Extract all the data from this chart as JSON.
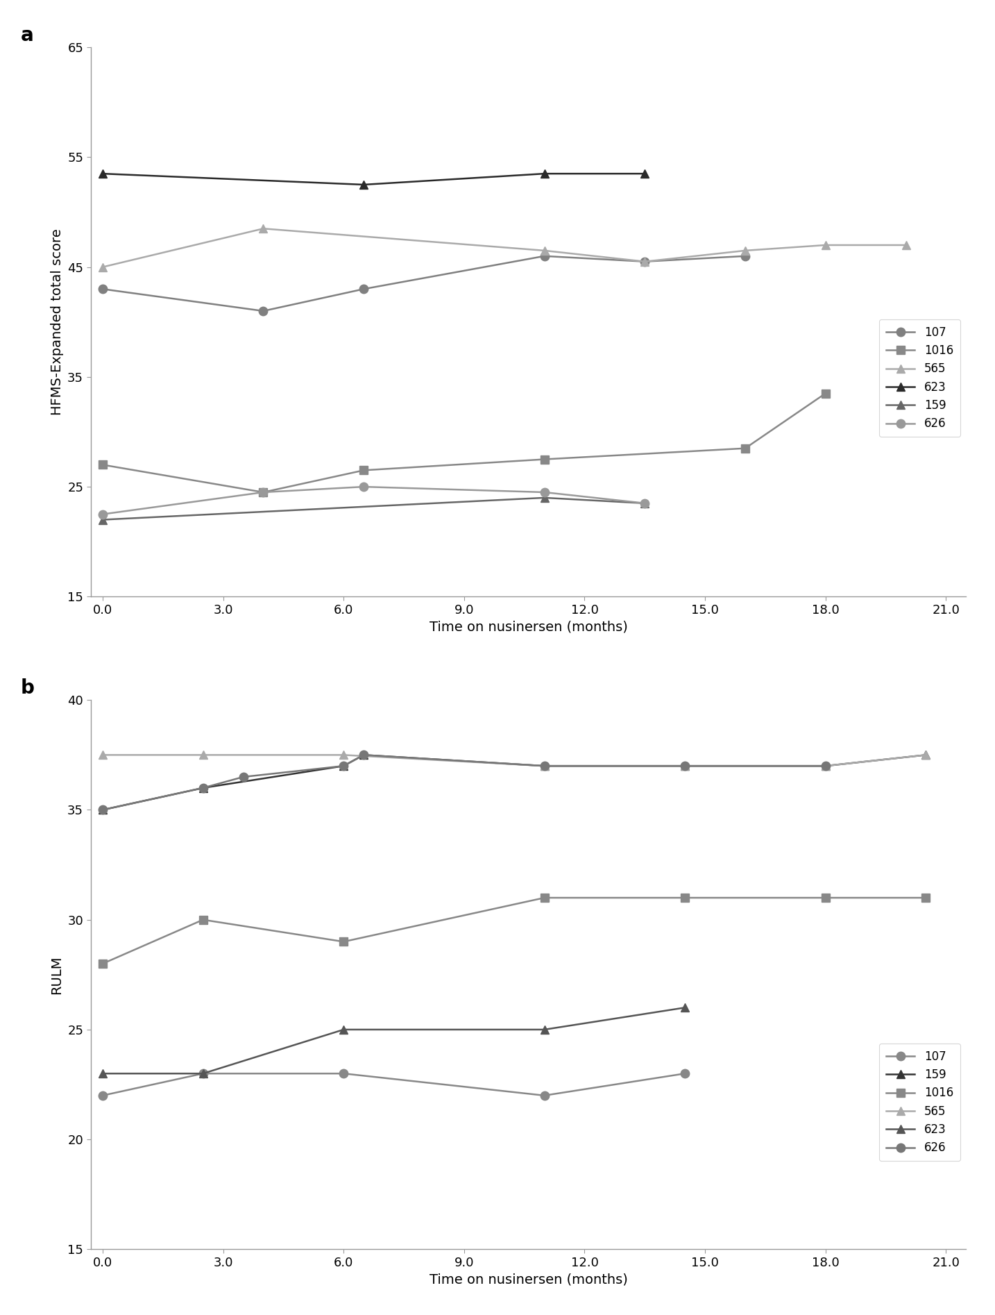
{
  "panel_a": {
    "title": "a",
    "ylabel": "HFMS-Expanded total score",
    "xlabel": "Time on nusinersen (months)",
    "ylim": [
      15,
      65
    ],
    "yticks": [
      15,
      25,
      35,
      45,
      55,
      65
    ],
    "xlim": [
      -0.3,
      21.5
    ],
    "xticks": [
      0.0,
      3.0,
      6.0,
      9.0,
      12.0,
      15.0,
      18.0,
      21.0
    ],
    "xtick_labels": [
      "0.0",
      "3.0",
      "6.0",
      "9.0",
      "12.0",
      "15.0",
      "18.0",
      "21.0"
    ],
    "series": {
      "107": {
        "x": [
          0,
          4,
          6.5,
          11,
          13.5,
          16
        ],
        "y": [
          43,
          41,
          43,
          46,
          45.5,
          46
        ],
        "color": "#808080",
        "marker": "o"
      },
      "1016": {
        "x": [
          0,
          4,
          6.5,
          11,
          16,
          18
        ],
        "y": [
          27,
          24.5,
          26.5,
          27.5,
          28.5,
          33.5
        ],
        "color": "#888888",
        "marker": "s"
      },
      "565": {
        "x": [
          0,
          4,
          11,
          13.5,
          16,
          18,
          20
        ],
        "y": [
          45,
          48.5,
          46.5,
          45.5,
          46.5,
          47,
          47
        ],
        "color": "#aaaaaa",
        "marker": "^"
      },
      "623": {
        "x": [
          0,
          6.5,
          11,
          13.5
        ],
        "y": [
          53.5,
          52.5,
          53.5,
          53.5
        ],
        "color": "#2a2a2a",
        "marker": "^"
      },
      "159": {
        "x": [
          0,
          11,
          13.5
        ],
        "y": [
          22,
          24,
          23.5
        ],
        "color": "#666666",
        "marker": "^"
      },
      "626": {
        "x": [
          0,
          4,
          6.5,
          11,
          13.5
        ],
        "y": [
          22.5,
          24.5,
          25,
          24.5,
          23.5
        ],
        "color": "#999999",
        "marker": "o"
      }
    },
    "legend_order": [
      "107",
      "1016",
      "565",
      "623",
      "159",
      "626"
    ]
  },
  "panel_b": {
    "title": "b",
    "ylabel": "RULM",
    "xlabel": "Time on nusinersen (months)",
    "ylim": [
      15,
      40
    ],
    "yticks": [
      15,
      20,
      25,
      30,
      35,
      40
    ],
    "xlim": [
      -0.3,
      21.5
    ],
    "xticks": [
      0.0,
      3.0,
      6.0,
      9.0,
      12.0,
      15.0,
      18.0,
      21.0
    ],
    "xtick_labels": [
      "0.0",
      "3.0",
      "6.0",
      "9.0",
      "12.0",
      "15.0",
      "18.0",
      "21.0"
    ],
    "series": {
      "107": {
        "x": [
          0,
          2.5,
          6,
          11,
          14.5
        ],
        "y": [
          22,
          23,
          23,
          22,
          23
        ],
        "color": "#888888",
        "marker": "o"
      },
      "159": {
        "x": [
          0,
          2.5,
          6,
          6.5,
          11,
          14.5,
          18,
          20.5
        ],
        "y": [
          35,
          36,
          37,
          37.5,
          37,
          37,
          37,
          37.5
        ],
        "color": "#333333",
        "marker": "^"
      },
      "1016": {
        "x": [
          0,
          2.5,
          6,
          11,
          14.5,
          18,
          20.5
        ],
        "y": [
          28,
          30,
          29,
          31,
          31,
          31,
          31
        ],
        "color": "#888888",
        "marker": "s"
      },
      "565": {
        "x": [
          0,
          2.5,
          6,
          11,
          14.5,
          18,
          20.5
        ],
        "y": [
          37.5,
          37.5,
          37.5,
          37,
          37,
          37,
          37.5
        ],
        "color": "#aaaaaa",
        "marker": "^"
      },
      "623": {
        "x": [
          0,
          2.5,
          6,
          11,
          14.5
        ],
        "y": [
          23,
          23,
          25,
          25,
          26
        ],
        "color": "#555555",
        "marker": "^"
      },
      "626": {
        "x": [
          0,
          2.5,
          3.5,
          6,
          6.5,
          11,
          14.5,
          18
        ],
        "y": [
          35,
          36,
          36.5,
          37,
          37.5,
          37,
          37,
          37
        ],
        "color": "#777777",
        "marker": "o"
      }
    },
    "legend_order": [
      "107",
      "159",
      "1016",
      "565",
      "623",
      "626"
    ]
  }
}
